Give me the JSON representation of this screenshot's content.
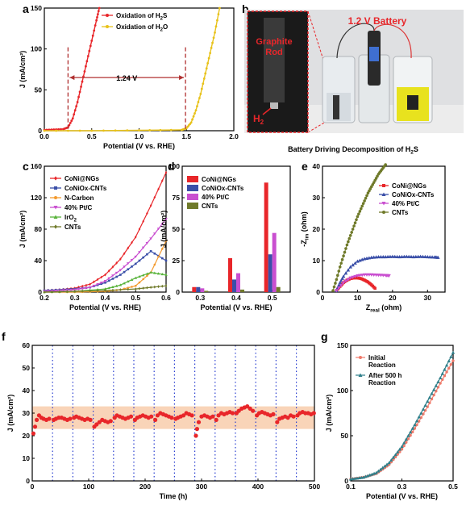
{
  "panels": {
    "a": "a",
    "b": "b",
    "c": "c",
    "d": "d",
    "e": "e",
    "f": "f",
    "g": "g"
  },
  "photo": {
    "inset_label_line1": "Graphite",
    "inset_label_line2": "Rod",
    "h2_label": "H",
    "h2_sub": "2",
    "battery_label": "1.2 V Battery",
    "caption": "Battery Driving Decomposition of H",
    "caption_sub": "2",
    "caption_end": "S"
  },
  "colors": {
    "red": "#e8262a",
    "yellow": "#e8c21a",
    "blue": "#3a4fa8",
    "orange": "#f39a2e",
    "pink": "#c94fd0",
    "green": "#58b33b",
    "olive": "#6f7a2a",
    "band": "#f7c9a6"
  },
  "chart_data": [
    {
      "id": "a",
      "type": "line",
      "xlabel": "Potential (V vs. RHE)",
      "ylabel": "J (mA/cm²)",
      "xlim": [
        0.0,
        2.0
      ],
      "ylim": [
        0,
        150
      ],
      "xticks": [
        "0.0",
        "0.5",
        "1.0",
        "1.5",
        "2.0"
      ],
      "yticks": [
        "0",
        "50",
        "100",
        "150"
      ],
      "annotation": "1.24 V",
      "markers": [
        0.25,
        1.49
      ],
      "series": [
        {
          "name": "Oxidation of H₂S",
          "name_base": "Oxidation of H",
          "name_sub": "2",
          "name_end": "S",
          "x": [
            0.0,
            0.1,
            0.2,
            0.25,
            0.3,
            0.35,
            0.4,
            0.45,
            0.5,
            0.55,
            0.58
          ],
          "y": [
            1,
            1.5,
            2,
            4,
            15,
            35,
            60,
            85,
            110,
            135,
            150
          ]
        },
        {
          "name": "Oxidation of H₂O",
          "name_base": "Oxidation of H",
          "name_sub": "2",
          "name_end": "O",
          "x": [
            0.0,
            0.5,
            1.0,
            1.45,
            1.5,
            1.55,
            1.6,
            1.65,
            1.7,
            1.75,
            1.8,
            1.85
          ],
          "y": [
            0,
            0,
            0.5,
            1,
            3,
            10,
            25,
            45,
            70,
            95,
            120,
            150
          ]
        }
      ]
    },
    {
      "id": "c",
      "type": "line",
      "xlabel": "Potential (V vs. RHE)",
      "ylabel": "J (mA/cm²)",
      "xlim": [
        0.2,
        0.6
      ],
      "ylim": [
        0,
        160
      ],
      "xticks": [
        "0.2",
        "0.3",
        "0.4",
        "0.5",
        "0.6"
      ],
      "yticks": [
        "0",
        "40",
        "80",
        "120",
        "160"
      ],
      "series": [
        {
          "name": "CoNi@NGs",
          "x": [
            0.2,
            0.25,
            0.3,
            0.35,
            0.4,
            0.45,
            0.5,
            0.55,
            0.6
          ],
          "y": [
            2,
            3,
            5,
            10,
            22,
            42,
            70,
            110,
            152
          ]
        },
        {
          "name": "CoNiOx-CNTs",
          "x": [
            0.2,
            0.25,
            0.3,
            0.35,
            0.4,
            0.45,
            0.5,
            0.55,
            0.6
          ],
          "y": [
            2,
            3,
            4,
            6,
            12,
            22,
            36,
            52,
            40
          ]
        },
        {
          "name": "N-Carbon",
          "x": [
            0.2,
            0.3,
            0.4,
            0.45,
            0.5,
            0.55,
            0.6
          ],
          "y": [
            0,
            0,
            1,
            3,
            8,
            25,
            65
          ]
        },
        {
          "name": "40% Pt/C",
          "x": [
            0.2,
            0.25,
            0.3,
            0.35,
            0.4,
            0.45,
            0.5,
            0.55,
            0.6
          ],
          "y": [
            1,
            2,
            3,
            6,
            14,
            28,
            45,
            68,
            93
          ]
        },
        {
          "name": "IrO₂",
          "name_base": "IrO",
          "name_sub": "2",
          "x": [
            0.2,
            0.3,
            0.4,
            0.45,
            0.5,
            0.55,
            0.6
          ],
          "y": [
            0,
            1,
            4,
            9,
            18,
            25,
            22
          ]
        },
        {
          "name": "CNTs",
          "x": [
            0.2,
            0.3,
            0.4,
            0.5,
            0.55,
            0.6
          ],
          "y": [
            0,
            1,
            2,
            4,
            6,
            8
          ]
        }
      ]
    },
    {
      "id": "d",
      "type": "bar",
      "xlabel": "Potential (V vs. RHE)",
      "ylabel": "J (mA/cm²)",
      "ylim": [
        0,
        100
      ],
      "categories": [
        "0.3",
        "0.4",
        "0.5"
      ],
      "yticks": [
        "0",
        "25",
        "50",
        "75",
        "100"
      ],
      "series": [
        {
          "name": "CoNi@NGs",
          "values": [
            4,
            27,
            87
          ]
        },
        {
          "name": "CoNiOx-CNTs",
          "values": [
            4,
            10,
            30
          ]
        },
        {
          "name": "40% Pt/C",
          "values": [
            3,
            15,
            47
          ]
        },
        {
          "name": "CNTs",
          "values": [
            1,
            2,
            4
          ]
        }
      ]
    },
    {
      "id": "e",
      "type": "scatter",
      "xlabel": "Z",
      "xlabel_sub": "real",
      "xlabel_end": " (ohm)",
      "ylabel": "-Z",
      "ylabel_sub": "im",
      "ylabel_end": " (ohm)",
      "xlim": [
        0,
        35
      ],
      "ylim": [
        0,
        40
      ],
      "xticks": [
        "0",
        "10",
        "20",
        "30"
      ],
      "yticks": [
        "0",
        "10",
        "20",
        "30",
        "40"
      ],
      "series": [
        {
          "name": "CoNi@NGs",
          "x": [
            4,
            5,
            6,
            7,
            8,
            9,
            10,
            11,
            12,
            13,
            14,
            15
          ],
          "y": [
            0.5,
            1.8,
            3,
            3.8,
            4.3,
            4.5,
            4.5,
            4.3,
            3.8,
            3.2,
            2.3,
            1.2
          ]
        },
        {
          "name": "CoNiOx-CNTs",
          "x": [
            4,
            5,
            6,
            8,
            10,
            12,
            14,
            16,
            18,
            20,
            22,
            24,
            26,
            28,
            30,
            32,
            33
          ],
          "y": [
            0.5,
            3,
            5,
            8,
            9.8,
            10.6,
            11,
            11.2,
            11.2,
            11.3,
            11.2,
            11.3,
            11.2,
            11.3,
            11.2,
            11.1,
            11
          ]
        },
        {
          "name": "40% Pt/C",
          "x": [
            4,
            6,
            8,
            10,
            12,
            14,
            16,
            18,
            19
          ],
          "y": [
            0.5,
            3,
            4.5,
            5.2,
            5.5,
            5.5,
            5.4,
            5.3,
            5.2
          ]
        },
        {
          "name": "CNTs",
          "x": [
            3,
            4,
            5,
            6,
            7,
            8,
            9,
            10,
            11,
            12,
            13,
            14,
            15,
            16,
            17,
            18
          ],
          "y": [
            0.5,
            4,
            8,
            11.5,
            15,
            18,
            21,
            24,
            26.5,
            29,
            31.5,
            33.5,
            35.5,
            37.5,
            39,
            40.5
          ]
        }
      ]
    },
    {
      "id": "f",
      "type": "scatter",
      "xlabel": "Time (h)",
      "ylabel": "J (mA/cm²)",
      "xlim": [
        0,
        500
      ],
      "ylim": [
        0,
        60
      ],
      "xticks": [
        "0",
        "100",
        "200",
        "300",
        "400",
        "500"
      ],
      "yticks": [
        "0",
        "10",
        "20",
        "30",
        "40",
        "50",
        "60"
      ],
      "band": [
        23,
        33
      ],
      "restarts": [
        36,
        72,
        108,
        144,
        180,
        216,
        252,
        288,
        324,
        360,
        396,
        432,
        468
      ],
      "x": [
        2,
        5,
        8,
        12,
        16,
        20,
        25,
        30,
        38,
        42,
        47,
        52,
        57,
        62,
        67,
        74,
        78,
        83,
        88,
        93,
        98,
        103,
        110,
        114,
        119,
        124,
        129,
        134,
        139,
        146,
        150,
        155,
        160,
        165,
        170,
        175,
        182,
        186,
        191,
        196,
        201,
        206,
        211,
        218,
        222,
        227,
        232,
        237,
        242,
        247,
        254,
        258,
        263,
        268,
        273,
        278,
        283,
        290,
        292,
        295,
        300,
        305,
        310,
        315,
        320,
        326,
        330,
        335,
        340,
        345,
        350,
        355,
        362,
        366,
        371,
        376,
        381,
        386,
        391,
        398,
        402,
        407,
        412,
        417,
        422,
        427,
        434,
        438,
        443,
        448,
        453,
        458,
        463,
        470,
        474,
        479,
        484,
        489,
        494,
        499
      ],
      "y": [
        21,
        24,
        27,
        29,
        28,
        27.5,
        27,
        27.5,
        27,
        27.5,
        28,
        28,
        27.5,
        27,
        27.5,
        28,
        28.5,
        28,
        27.5,
        27,
        27.5,
        27,
        24,
        25,
        26,
        27,
        26.5,
        26,
        26.5,
        28,
        29,
        28.5,
        28,
        27.5,
        28,
        28.5,
        27,
        28,
        28.5,
        29,
        28.5,
        28,
        28.5,
        27,
        29,
        30,
        29.5,
        29,
        28.5,
        28,
        27.5,
        28,
        28.5,
        29,
        30,
        29.5,
        29,
        20,
        23,
        26,
        28.5,
        29,
        28.5,
        28,
        28.5,
        27,
        29,
        30,
        29.5,
        30,
        30.5,
        30,
        30,
        31,
        32,
        32.5,
        33,
        32,
        31,
        29,
        30,
        30.5,
        30,
        29.5,
        29,
        29.5,
        26,
        27.5,
        28,
        28.5,
        28,
        29,
        28.5,
        29,
        30,
        30.5,
        30,
        30,
        29.5,
        30
      ]
    },
    {
      "id": "g",
      "type": "line",
      "xlabel": "Potential (V vs. RHE)",
      "ylabel": "J (mA/cm²)",
      "xlim": [
        0.1,
        0.5
      ],
      "ylim": [
        0,
        150
      ],
      "xticks": [
        "0.1",
        "0.3",
        "0.5"
      ],
      "yticks": [
        "0",
        "50",
        "100",
        "150"
      ],
      "series": [
        {
          "name": "Initial Reaction",
          "name_line1": "Initial",
          "name_line2": "Reaction",
          "x": [
            0.1,
            0.15,
            0.2,
            0.25,
            0.3,
            0.35,
            0.4,
            0.45,
            0.5
          ],
          "y": [
            2,
            4,
            8,
            18,
            35,
            58,
            82,
            108,
            133
          ]
        },
        {
          "name": "After 500 h Reaction",
          "name_line1": "After 500 h",
          "name_line2": "Reaction",
          "x": [
            0.1,
            0.15,
            0.2,
            0.25,
            0.3,
            0.35,
            0.4,
            0.45,
            0.5
          ],
          "y": [
            2,
            4,
            9,
            20,
            38,
            62,
            88,
            114,
            142
          ]
        }
      ]
    }
  ]
}
